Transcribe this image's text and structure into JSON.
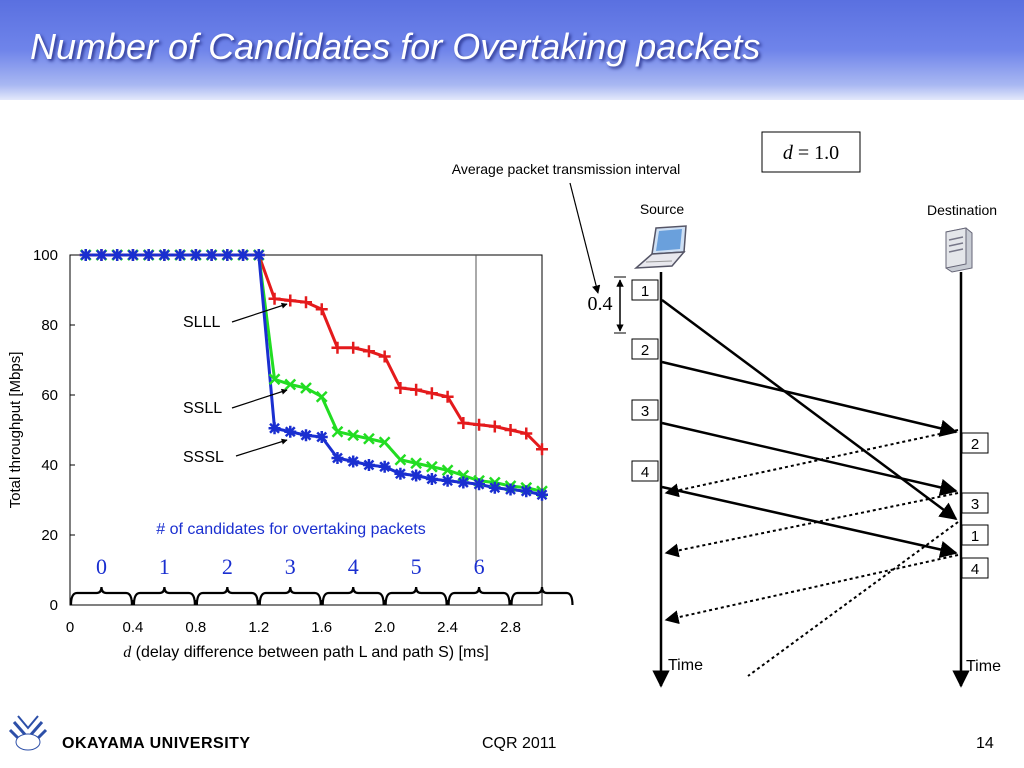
{
  "slide": {
    "title": "Number of Candidates for Overtaking packets",
    "footer": {
      "university": "OKAYAMA  UNIVERSITY",
      "conference": "CQR 2011",
      "page": "14"
    }
  },
  "chart_data": {
    "type": "line",
    "title": "",
    "xlabel_var": "d",
    "xlabel": " (delay difference between path L and path S) [ms]",
    "ylabel": "Total throughput [Mbps]",
    "xlim": [
      0,
      3.0
    ],
    "ylim": [
      0,
      100
    ],
    "xticks": [
      0,
      0.4,
      0.8,
      1.2,
      1.6,
      2.0,
      2.4,
      2.8
    ],
    "xtick_labels": [
      "0",
      "0.4",
      "0.8",
      "1.2",
      "1.6",
      "2.0",
      "2.4",
      "2.8"
    ],
    "yticks": [
      0,
      20,
      40,
      60,
      80,
      100
    ],
    "grid": false,
    "x": [
      0.1,
      0.2,
      0.3,
      0.4,
      0.5,
      0.6,
      0.7,
      0.8,
      0.9,
      1.0,
      1.1,
      1.2,
      1.3,
      1.4,
      1.5,
      1.6,
      1.7,
      1.8,
      1.9,
      2.0,
      2.1,
      2.2,
      2.3,
      2.4,
      2.5,
      2.6,
      2.7,
      2.8,
      2.9,
      3.0
    ],
    "series": [
      {
        "name": "SLLL",
        "color": "#e41a1c",
        "marker": "+",
        "values": [
          100,
          100,
          100,
          100,
          100,
          100,
          100,
          100,
          100,
          100,
          100,
          100,
          87.5,
          87,
          86.5,
          84.5,
          73.5,
          73.5,
          72.5,
          71,
          62,
          61.5,
          60.5,
          59.5,
          52,
          51.5,
          51,
          50,
          49,
          44.5
        ]
      },
      {
        "name": "SSLL",
        "color": "#22dd22",
        "marker": "x",
        "values": [
          100,
          100,
          100,
          100,
          100,
          100,
          100,
          100,
          100,
          100,
          100,
          100,
          64.5,
          63,
          62,
          59.5,
          49.5,
          48.5,
          47.5,
          46.5,
          41.5,
          40.5,
          39.5,
          38.5,
          37,
          35.5,
          35,
          34,
          33.5,
          32.5
        ]
      },
      {
        "name": "SSSL",
        "color": "#1a2fd0",
        "marker": "*",
        "values": [
          100,
          100,
          100,
          100,
          100,
          100,
          100,
          100,
          100,
          100,
          100,
          100,
          50.5,
          49.5,
          48.5,
          48,
          42,
          41,
          40,
          39.5,
          37.5,
          37,
          36,
          35.5,
          35,
          34.5,
          33.5,
          33,
          32.5,
          31.5
        ]
      }
    ],
    "annotation": "# of candidates for overtaking packets",
    "candidate_labels": [
      "0",
      "1",
      "2",
      "3",
      "4",
      "5",
      "6"
    ]
  },
  "diagram": {
    "d_box_var": "d",
    "d_box_value": " = 1.0",
    "interval_caption": "Average packet transmission interval",
    "interval_value": "0.4",
    "source_label": "Source",
    "destination_label": "Destination",
    "time_label": "Time",
    "sent_packets": [
      "1",
      "2",
      "3",
      "4"
    ],
    "received_packets": [
      "2",
      "3",
      "1",
      "4"
    ]
  }
}
